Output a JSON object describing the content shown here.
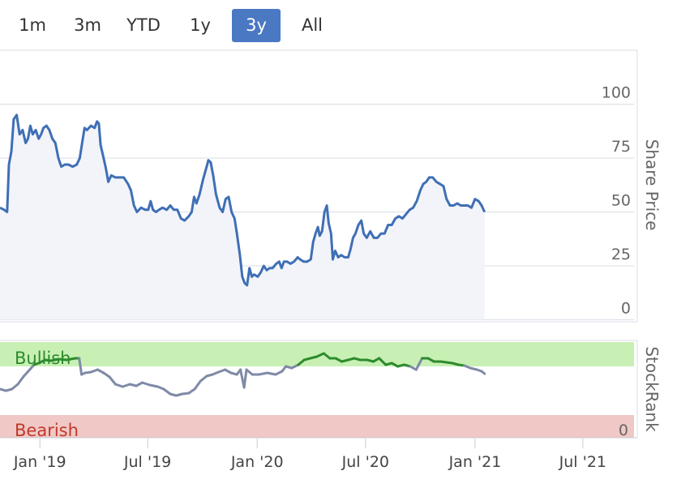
{
  "range_selector": {
    "buttons": [
      "1m",
      "3m",
      "YTD",
      "1y",
      "3y",
      "All"
    ],
    "active": "3y",
    "active_color": "#4a78c2"
  },
  "colors": {
    "price_line": "#3f6fb5",
    "price_fill": "#f2f4f9",
    "bullish_band": "#c8f0b4",
    "bearish_band": "#f0c8c5",
    "bullish_text": "#2d8a2d",
    "bearish_text": "#c0392b",
    "rank_bullish": "#2e8b2e",
    "rank_neutral": "#7f8aa6",
    "grid": "#d9dde6"
  },
  "chart_data": [
    {
      "type": "area",
      "ylabel": "Share Price",
      "ylim": [
        0,
        100
      ],
      "yticks": [
        0,
        25,
        50,
        75,
        100
      ],
      "xlim": [
        "2018-10-26",
        "2021-09-25"
      ],
      "points": [
        [
          "2018-10-26",
          52
        ],
        [
          "2018-11-02",
          51
        ],
        [
          "2018-11-07",
          50
        ],
        [
          "2018-11-10",
          72
        ],
        [
          "2018-11-14",
          78
        ],
        [
          "2018-11-18",
          93
        ],
        [
          "2018-11-23",
          95
        ],
        [
          "2018-11-28",
          86
        ],
        [
          "2018-12-03",
          88
        ],
        [
          "2018-12-08",
          82
        ],
        [
          "2018-12-12",
          84
        ],
        [
          "2018-12-16",
          90
        ],
        [
          "2018-12-20",
          86
        ],
        [
          "2018-12-25",
          88
        ],
        [
          "2018-12-30",
          84
        ],
        [
          "2019-01-03",
          86
        ],
        [
          "2019-01-07",
          89
        ],
        [
          "2019-01-12",
          90
        ],
        [
          "2019-01-17",
          88
        ],
        [
          "2019-01-22",
          84
        ],
        [
          "2019-01-27",
          82
        ],
        [
          "2019-02-01",
          75
        ],
        [
          "2019-02-06",
          71
        ],
        [
          "2019-02-12",
          72
        ],
        [
          "2019-02-18",
          72
        ],
        [
          "2019-02-25",
          71
        ],
        [
          "2019-03-04",
          72
        ],
        [
          "2019-03-09",
          75
        ],
        [
          "2019-03-13",
          82
        ],
        [
          "2019-03-17",
          89
        ],
        [
          "2019-03-21",
          88
        ],
        [
          "2019-03-28",
          90
        ],
        [
          "2019-04-03",
          89
        ],
        [
          "2019-04-07",
          92
        ],
        [
          "2019-04-10",
          91
        ],
        [
          "2019-04-13",
          81
        ],
        [
          "2019-04-18",
          75
        ],
        [
          "2019-04-22",
          70
        ],
        [
          "2019-04-26",
          64
        ],
        [
          "2019-05-01",
          67
        ],
        [
          "2019-05-08",
          66
        ],
        [
          "2019-05-15",
          66
        ],
        [
          "2019-05-22",
          66
        ],
        [
          "2019-05-29",
          63
        ],
        [
          "2019-06-03",
          60
        ],
        [
          "2019-06-08",
          53
        ],
        [
          "2019-06-13",
          50
        ],
        [
          "2019-06-20",
          52
        ],
        [
          "2019-06-27",
          51
        ],
        [
          "2019-07-02",
          51
        ],
        [
          "2019-07-06",
          55
        ],
        [
          "2019-07-10",
          51
        ],
        [
          "2019-07-15",
          50
        ],
        [
          "2019-07-20",
          51
        ],
        [
          "2019-07-26",
          52
        ],
        [
          "2019-08-02",
          51
        ],
        [
          "2019-08-08",
          53
        ],
        [
          "2019-08-14",
          51
        ],
        [
          "2019-08-20",
          51
        ],
        [
          "2019-08-26",
          47
        ],
        [
          "2019-09-01",
          46
        ],
        [
          "2019-09-08",
          48
        ],
        [
          "2019-09-13",
          50
        ],
        [
          "2019-09-17",
          57
        ],
        [
          "2019-09-21",
          54
        ],
        [
          "2019-09-26",
          58
        ],
        [
          "2019-10-02",
          65
        ],
        [
          "2019-10-07",
          70
        ],
        [
          "2019-10-11",
          74
        ],
        [
          "2019-10-15",
          73
        ],
        [
          "2019-10-19",
          67
        ],
        [
          "2019-10-24",
          58
        ],
        [
          "2019-10-30",
          52
        ],
        [
          "2019-11-04",
          50
        ],
        [
          "2019-11-09",
          56
        ],
        [
          "2019-11-14",
          57
        ],
        [
          "2019-11-19",
          50
        ],
        [
          "2019-11-24",
          47
        ],
        [
          "2019-11-28",
          40
        ],
        [
          "2019-12-03",
          30
        ],
        [
          "2019-12-07",
          20
        ],
        [
          "2019-12-11",
          17
        ],
        [
          "2019-12-15",
          16
        ],
        [
          "2019-12-19",
          24
        ],
        [
          "2019-12-23",
          20
        ],
        [
          "2019-12-27",
          21
        ],
        [
          "2020-01-02",
          20
        ],
        [
          "2020-01-07",
          22
        ],
        [
          "2020-01-12",
          25
        ],
        [
          "2020-01-17",
          23
        ],
        [
          "2020-01-22",
          24
        ],
        [
          "2020-01-27",
          24
        ],
        [
          "2020-02-02",
          26
        ],
        [
          "2020-02-07",
          27
        ],
        [
          "2020-02-11",
          24
        ],
        [
          "2020-02-15",
          27
        ],
        [
          "2020-02-20",
          27
        ],
        [
          "2020-02-26",
          26
        ],
        [
          "2020-03-03",
          27
        ],
        [
          "2020-03-09",
          29
        ],
        [
          "2020-03-13",
          28
        ],
        [
          "2020-03-19",
          27
        ],
        [
          "2020-03-25",
          27
        ],
        [
          "2020-03-31",
          28
        ],
        [
          "2020-04-04",
          36
        ],
        [
          "2020-04-08",
          40
        ],
        [
          "2020-04-12",
          43
        ],
        [
          "2020-04-15",
          39
        ],
        [
          "2020-04-19",
          41
        ],
        [
          "2020-04-23",
          50
        ],
        [
          "2020-04-27",
          53
        ],
        [
          "2020-04-30",
          45
        ],
        [
          "2020-05-04",
          40
        ],
        [
          "2020-05-07",
          28
        ],
        [
          "2020-05-11",
          32
        ],
        [
          "2020-05-16",
          29
        ],
        [
          "2020-05-21",
          30
        ],
        [
          "2020-05-27",
          29
        ],
        [
          "2020-06-02",
          29
        ],
        [
          "2020-06-06",
          33
        ],
        [
          "2020-06-10",
          38
        ],
        [
          "2020-06-14",
          40
        ],
        [
          "2020-06-19",
          44
        ],
        [
          "2020-06-24",
          46
        ],
        [
          "2020-06-28",
          40
        ],
        [
          "2020-07-03",
          38
        ],
        [
          "2020-07-09",
          41
        ],
        [
          "2020-07-15",
          38
        ],
        [
          "2020-07-21",
          38
        ],
        [
          "2020-07-27",
          40
        ],
        [
          "2020-08-02",
          40
        ],
        [
          "2020-08-08",
          44
        ],
        [
          "2020-08-14",
          44
        ],
        [
          "2020-08-20",
          47
        ],
        [
          "2020-08-26",
          48
        ],
        [
          "2020-09-01",
          47
        ],
        [
          "2020-09-07",
          49
        ],
        [
          "2020-09-13",
          51
        ],
        [
          "2020-09-19",
          52
        ],
        [
          "2020-09-25",
          55
        ],
        [
          "2020-10-01",
          60
        ],
        [
          "2020-10-06",
          63
        ],
        [
          "2020-10-11",
          64
        ],
        [
          "2020-10-16",
          66
        ],
        [
          "2020-10-22",
          66
        ],
        [
          "2020-10-28",
          64
        ],
        [
          "2020-11-03",
          63
        ],
        [
          "2020-11-09",
          62
        ],
        [
          "2020-11-14",
          56
        ],
        [
          "2020-11-20",
          53
        ],
        [
          "2020-11-26",
          53
        ],
        [
          "2020-12-02",
          54
        ],
        [
          "2020-12-08",
          53
        ],
        [
          "2020-12-14",
          53
        ],
        [
          "2020-12-20",
          53
        ],
        [
          "2020-12-26",
          52
        ],
        [
          "2021-01-01",
          56
        ],
        [
          "2021-01-07",
          55
        ],
        [
          "2021-01-12",
          53
        ],
        [
          "2021-01-17",
          50
        ]
      ]
    },
    {
      "type": "line",
      "ylabel": "StockRank",
      "yticks": [
        0
      ],
      "ylim": [
        0,
        100
      ],
      "bands": {
        "bullish_label": "Bullish",
        "bearish_label": "Bearish",
        "bullish_from": 70,
        "bearish_to": 10
      },
      "points": [
        [
          "2018-10-26",
          42
        ],
        [
          "2018-11-05",
          40
        ],
        [
          "2018-11-15",
          42
        ],
        [
          "2018-11-25",
          48
        ],
        [
          "2018-12-05",
          58
        ],
        [
          "2018-12-15",
          66
        ],
        [
          "2018-12-22",
          72
        ],
        [
          "2018-12-30",
          74
        ],
        [
          "2019-01-10",
          78
        ],
        [
          "2019-01-20",
          77
        ],
        [
          "2019-02-01",
          79
        ],
        [
          "2019-02-15",
          78
        ],
        [
          "2019-03-01",
          80
        ],
        [
          "2019-03-08",
          80
        ],
        [
          "2019-03-12",
          60
        ],
        [
          "2019-03-18",
          62
        ],
        [
          "2019-03-28",
          63
        ],
        [
          "2019-04-08",
          66
        ],
        [
          "2019-04-18",
          62
        ],
        [
          "2019-04-28",
          57
        ],
        [
          "2019-05-08",
          48
        ],
        [
          "2019-05-20",
          45
        ],
        [
          "2019-06-01",
          48
        ],
        [
          "2019-06-12",
          46
        ],
        [
          "2019-06-22",
          50
        ],
        [
          "2019-07-05",
          47
        ],
        [
          "2019-07-18",
          45
        ],
        [
          "2019-07-28",
          42
        ],
        [
          "2019-08-08",
          36
        ],
        [
          "2019-08-18",
          34
        ],
        [
          "2019-08-28",
          36
        ],
        [
          "2019-09-08",
          37
        ],
        [
          "2019-09-18",
          42
        ],
        [
          "2019-09-28",
          52
        ],
        [
          "2019-10-08",
          58
        ],
        [
          "2019-10-18",
          60
        ],
        [
          "2019-10-28",
          63
        ],
        [
          "2019-11-08",
          66
        ],
        [
          "2019-11-18",
          62
        ],
        [
          "2019-11-28",
          60
        ],
        [
          "2019-12-04",
          66
        ],
        [
          "2019-12-10",
          44
        ],
        [
          "2019-12-14",
          66
        ],
        [
          "2019-12-24",
          60
        ],
        [
          "2020-01-04",
          60
        ],
        [
          "2020-01-18",
          62
        ],
        [
          "2020-02-01",
          60
        ],
        [
          "2020-02-12",
          64
        ],
        [
          "2020-02-18",
          70
        ],
        [
          "2020-02-28",
          68
        ],
        [
          "2020-03-10",
          72
        ],
        [
          "2020-03-20",
          78
        ],
        [
          "2020-03-30",
          80
        ],
        [
          "2020-04-10",
          82
        ],
        [
          "2020-04-22",
          86
        ],
        [
          "2020-05-02",
          80
        ],
        [
          "2020-05-12",
          80
        ],
        [
          "2020-05-22",
          76
        ],
        [
          "2020-06-02",
          78
        ],
        [
          "2020-06-12",
          80
        ],
        [
          "2020-06-22",
          78
        ],
        [
          "2020-07-04",
          78
        ],
        [
          "2020-07-14",
          76
        ],
        [
          "2020-07-24",
          80
        ],
        [
          "2020-08-04",
          72
        ],
        [
          "2020-08-14",
          74
        ],
        [
          "2020-08-24",
          70
        ],
        [
          "2020-09-04",
          72
        ],
        [
          "2020-09-14",
          70
        ],
        [
          "2020-09-24",
          66
        ],
        [
          "2020-10-04",
          80
        ],
        [
          "2020-10-14",
          80
        ],
        [
          "2020-10-24",
          76
        ],
        [
          "2020-11-04",
          76
        ],
        [
          "2020-11-14",
          75
        ],
        [
          "2020-11-24",
          74
        ],
        [
          "2020-12-04",
          72
        ],
        [
          "2020-12-14",
          71
        ],
        [
          "2020-12-24",
          68
        ],
        [
          "2021-01-04",
          66
        ],
        [
          "2021-01-12",
          64
        ],
        [
          "2021-01-17",
          61
        ]
      ]
    }
  ],
  "x_axis": {
    "ticks": [
      {
        "label": "Jan '19",
        "date": "2019-01-01"
      },
      {
        "label": "Jul '19",
        "date": "2019-07-01"
      },
      {
        "label": "Jan '20",
        "date": "2020-01-01"
      },
      {
        "label": "Jul '20",
        "date": "2020-07-01"
      },
      {
        "label": "Jan '21",
        "date": "2021-01-01"
      },
      {
        "label": "Jul '21",
        "date": "2021-07-01"
      }
    ]
  }
}
